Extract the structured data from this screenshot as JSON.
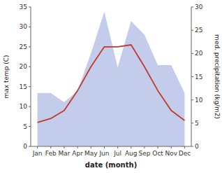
{
  "chart_data": {
    "type": "line",
    "categories": [
      "Jan",
      "Feb",
      "Mar",
      "Apr",
      "May",
      "Jun",
      "Jul",
      "Aug",
      "Sep",
      "Oct",
      "Nov",
      "Dec"
    ],
    "series": [
      {
        "type": "area",
        "axis": "y2",
        "color": "#b8c4e8",
        "values": [
          11.5,
          11.5,
          9.5,
          12.0,
          20.0,
          29.0,
          17.0,
          27.0,
          24.0,
          17.5,
          17.5,
          11.5
        ]
      },
      {
        "type": "line",
        "color": "#c0392b",
        "values": [
          6.0,
          7.0,
          9.0,
          14.0,
          20.0,
          25.0,
          25.0,
          25.5,
          20.0,
          14.0,
          9.0,
          6.5
        ]
      }
    ],
    "xlabel": "date (month)",
    "ylabel": "max temp (C)",
    "y2label": "med. precipitation (kg/m2)",
    "ylim": [
      0,
      35
    ],
    "yticks": [
      0,
      5,
      10,
      15,
      20,
      25,
      30,
      35
    ],
    "y2lim": [
      0,
      30
    ],
    "y2ticks": [
      0,
      5,
      10,
      15,
      20,
      25,
      30
    ],
    "grid": false
  }
}
